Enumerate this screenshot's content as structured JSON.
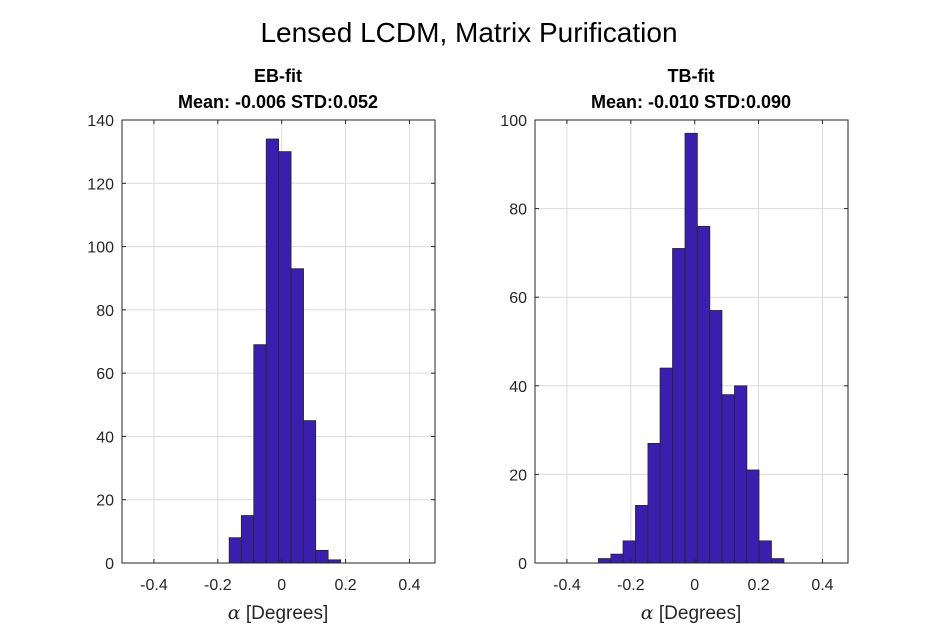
{
  "figure_title": "Lensed LCDM, Matrix Purification",
  "bar_color": "#3a1fae",
  "chart_data": [
    {
      "type": "bar",
      "title": "EB-fit",
      "subtitle": "Mean: -0.006 STD:0.052",
      "xlabel_symbol": "α",
      "xlabel": " [Degrees]",
      "ylabel": "",
      "xlim": [
        -0.5,
        0.48
      ],
      "ylim": [
        0,
        140
      ],
      "xticks": [
        -0.4,
        -0.2,
        0,
        0.2,
        0.4
      ],
      "xtick_labels": [
        "-0.4",
        "-0.2",
        "0",
        "0.2",
        "0.4"
      ],
      "yticks": [
        0,
        20,
        40,
        60,
        80,
        100,
        120,
        140
      ],
      "ytick_labels": [
        "0",
        "20",
        "40",
        "60",
        "80",
        "100",
        "120",
        "140"
      ],
      "grid": true,
      "bin_width": 0.0388,
      "bin_centers": [
        -0.145,
        -0.107,
        -0.068,
        -0.029,
        0.01,
        0.049,
        0.087,
        0.126,
        0.165
      ],
      "values": [
        8,
        15,
        69,
        134,
        130,
        93,
        45,
        4,
        1
      ]
    },
    {
      "type": "bar",
      "title": "TB-fit",
      "subtitle": "Mean: -0.010 STD:0.090",
      "xlabel_symbol": "α",
      "xlabel": " [Degrees]",
      "ylabel": "",
      "xlim": [
        -0.5,
        0.48
      ],
      "ylim": [
        0,
        100
      ],
      "xticks": [
        -0.4,
        -0.2,
        0,
        0.2,
        0.4
      ],
      "xtick_labels": [
        "-0.4",
        "-0.2",
        "0",
        "0.2",
        "0.4"
      ],
      "yticks": [
        0,
        20,
        40,
        60,
        80,
        100
      ],
      "ytick_labels": [
        "0",
        "20",
        "40",
        "60",
        "80",
        "100"
      ],
      "grid": true,
      "bin_width": 0.0387,
      "bin_centers": [
        -0.282,
        -0.243,
        -0.205,
        -0.166,
        -0.127,
        -0.089,
        -0.05,
        -0.011,
        0.028,
        0.066,
        0.105,
        0.144,
        0.182,
        0.221,
        0.26
      ],
      "values": [
        1,
        2,
        5,
        13,
        27,
        44,
        71,
        97,
        76,
        57,
        38,
        40,
        21,
        5,
        1
      ]
    }
  ]
}
